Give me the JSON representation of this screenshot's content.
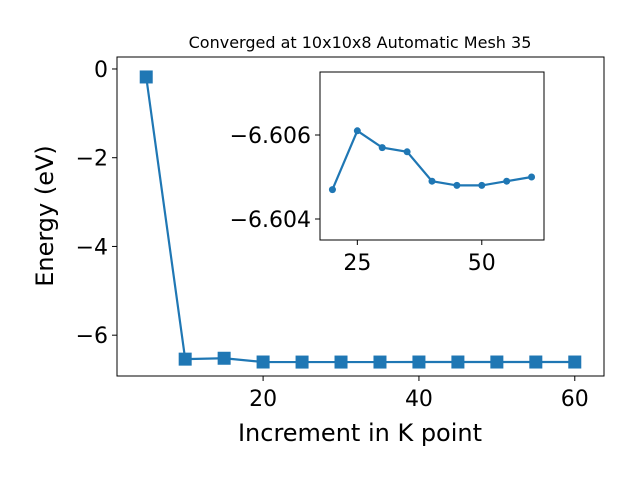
{
  "chart_data": [
    {
      "type": "line",
      "title": "Converged at 10x10x8 Automatic Mesh 35",
      "xlabel": "Increment in K point",
      "ylabel": "Energy (eV)",
      "xlim": [
        1.25,
        63.75
      ],
      "ylim": [
        -6.92,
        0.27
      ],
      "xticks": [
        20,
        40,
        60
      ],
      "xtick_labels": [
        "20",
        "40",
        "60"
      ],
      "yticks": [
        0,
        -2,
        -4,
        -6
      ],
      "ytick_labels": [
        "0",
        "−2",
        "−4",
        "−6"
      ],
      "marker": "square",
      "color": "#1f77b4",
      "grid": false,
      "series": [
        {
          "x": [
            5,
            10,
            15,
            20,
            25,
            30,
            35,
            40,
            45,
            50,
            55,
            60
          ],
          "y": [
            -0.18,
            -6.54,
            -6.52,
            -6.6047,
            -6.6061,
            -6.6057,
            -6.6056,
            -6.6049,
            -6.6048,
            -6.6048,
            -6.6049,
            -6.605
          ]
        }
      ]
    },
    {
      "type": "line",
      "inset": true,
      "xlim": [
        17.5,
        62.5
      ],
      "ylim": [
        -6.6035,
        -6.6075
      ],
      "xticks": [
        25,
        50
      ],
      "xtick_labels": [
        "25",
        "50"
      ],
      "yticks": [
        -6.606,
        -6.604
      ],
      "ytick_labels": [
        "−6.606",
        "−6.604"
      ],
      "marker": "circle",
      "color": "#1f77b4",
      "series": [
        {
          "x": [
            20,
            25,
            30,
            35,
            40,
            45,
            50,
            55,
            60
          ],
          "y": [
            -6.6047,
            -6.6061,
            -6.6057,
            -6.6056,
            -6.6049,
            -6.6048,
            -6.6048,
            -6.6049,
            -6.605
          ]
        }
      ]
    }
  ]
}
